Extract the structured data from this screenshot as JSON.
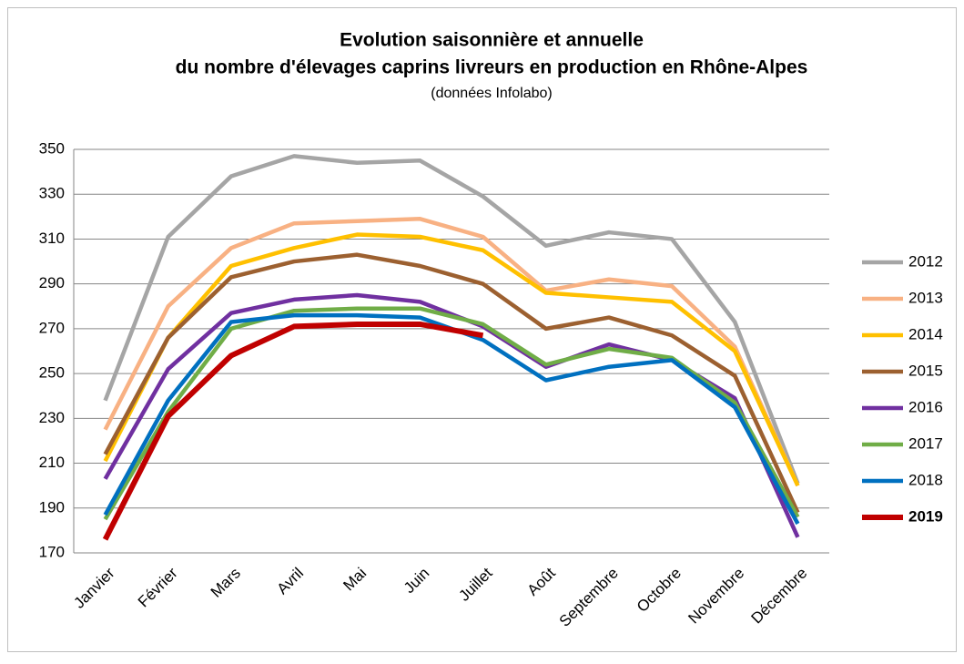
{
  "chart_data": {
    "type": "line",
    "title": [
      "Evolution saisonnière et annuelle",
      "du nombre d'élevages caprins livreurs en production en Rhône-Alpes"
    ],
    "subtitle": "(données Infolabo)",
    "categories": [
      "Janvier",
      "Février",
      "Mars",
      "Avril",
      "Mai",
      "Juin",
      "Juillet",
      "Août",
      "Septembre",
      "Octobre",
      "Novembre",
      "Décembre"
    ],
    "series": [
      {
        "name": "2012",
        "color": "#a5a5a5",
        "values": [
          238,
          311,
          338,
          347,
          344,
          345,
          329,
          307,
          313,
          310,
          273,
          201
        ]
      },
      {
        "name": "2013",
        "color": "#f8b183",
        "values": [
          225,
          280,
          306,
          317,
          318,
          319,
          311,
          287,
          292,
          289,
          262,
          200
        ]
      },
      {
        "name": "2014",
        "color": "#ffc000",
        "values": [
          211,
          266,
          298,
          306,
          312,
          311,
          305,
          286,
          284,
          282,
          260,
          200
        ]
      },
      {
        "name": "2015",
        "color": "#9c6030",
        "values": [
          214,
          266,
          293,
          300,
          303,
          298,
          290,
          270,
          275,
          267,
          249,
          188
        ]
      },
      {
        "name": "2016",
        "color": "#7030a0",
        "values": [
          203,
          252,
          277,
          283,
          285,
          282,
          271,
          253,
          263,
          256,
          239,
          177
        ]
      },
      {
        "name": "2017",
        "color": "#70ad47",
        "values": [
          185,
          233,
          270,
          278,
          279,
          279,
          272,
          254,
          261,
          257,
          237,
          186
        ]
      },
      {
        "name": "2018",
        "color": "#0070c0",
        "values": [
          187,
          238,
          273,
          276,
          276,
          275,
          265,
          247,
          253,
          256,
          235,
          183
        ]
      },
      {
        "name": "2019",
        "color": "#c00000",
        "bold": true,
        "values": [
          176,
          231,
          258,
          271,
          272,
          272,
          267,
          null,
          null,
          null,
          null,
          null
        ]
      }
    ],
    "ylim": [
      170,
      350
    ],
    "yticks": [
      170,
      190,
      210,
      230,
      250,
      270,
      290,
      310,
      330,
      350
    ],
    "grid": true,
    "legend": "right"
  }
}
